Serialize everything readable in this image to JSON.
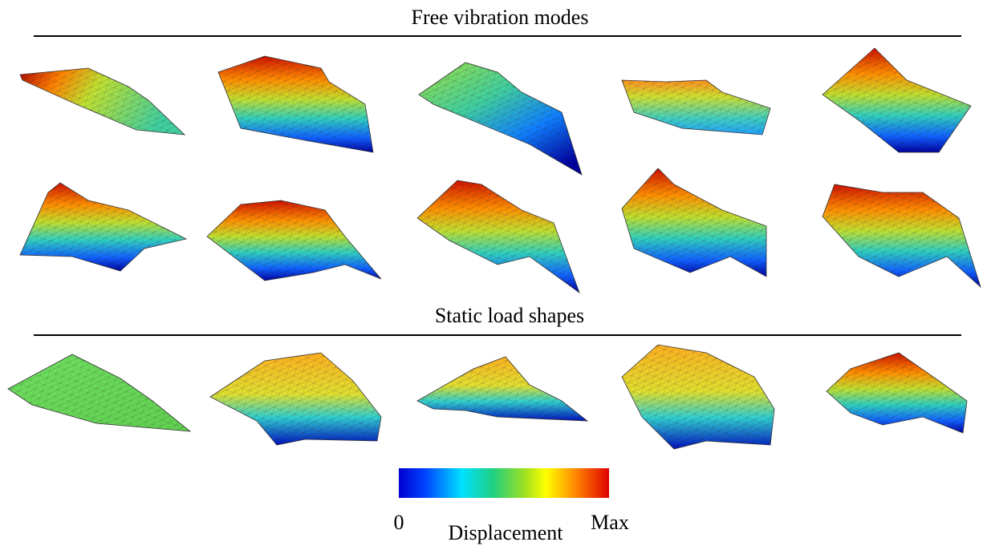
{
  "sections": [
    {
      "title": "Free vibration modes"
    },
    {
      "title": "Static load shapes"
    }
  ],
  "colorbar": {
    "min_label": "0",
    "max_label": "Max",
    "label": "Displacement"
  }
}
